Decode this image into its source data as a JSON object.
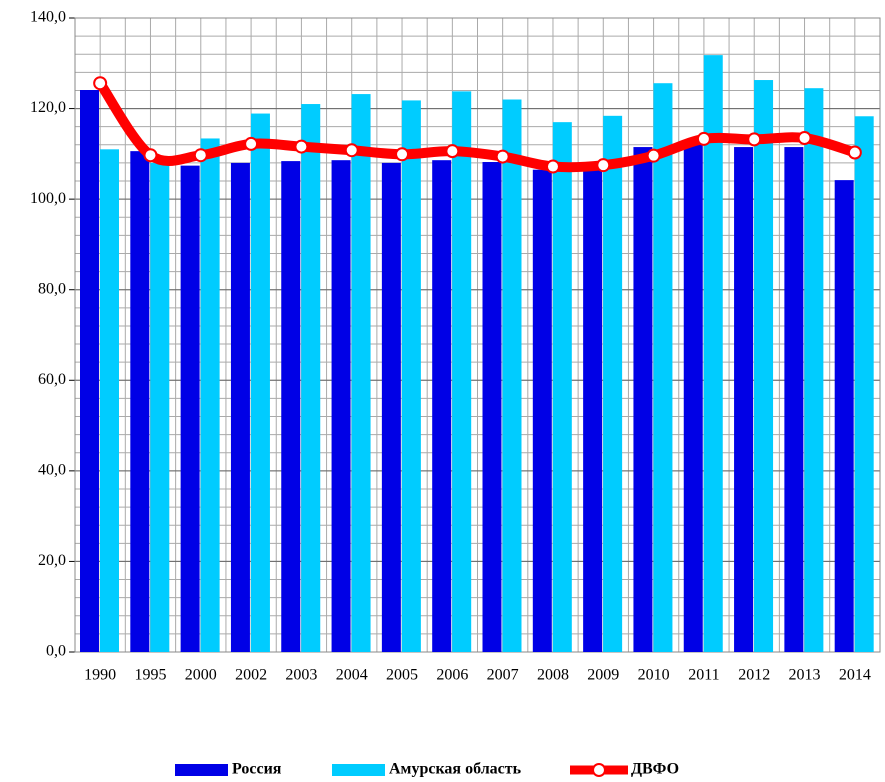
{
  "chart_data": {
    "type": "bar_line",
    "categories": [
      "1990",
      "1995",
      "2000",
      "2002",
      "2003",
      "2004",
      "2005",
      "2006",
      "2007",
      "2008",
      "2009",
      "2010",
      "2011",
      "2012",
      "2013",
      "2014"
    ],
    "series": [
      {
        "name": "Россия",
        "type": "bar",
        "color": "#0000e6",
        "values": [
          124.1,
          110.6,
          107.4,
          108.0,
          108.4,
          108.6,
          108.0,
          108.6,
          108.2,
          106.5,
          106.5,
          111.5,
          112.8,
          111.5,
          111.5,
          104.2
        ]
      },
      {
        "name": "Амурская область",
        "type": "bar",
        "color": "#00ccff",
        "values": [
          111.0,
          108.0,
          113.4,
          118.9,
          121.0,
          123.2,
          121.8,
          123.8,
          122.0,
          117.0,
          118.4,
          125.6,
          131.8,
          126.3,
          124.5,
          118.3
        ]
      },
      {
        "name": "ДВФО",
        "type": "line",
        "color": "#ff0000",
        "values": [
          125.6,
          109.7,
          109.7,
          112.2,
          111.6,
          110.8,
          109.9,
          110.6,
          109.4,
          107.2,
          107.5,
          109.6,
          113.3,
          113.2,
          113.5,
          110.3
        ]
      }
    ],
    "ylim": [
      0,
      140
    ],
    "yticks": [
      {
        "value": 0,
        "label": "0,0"
      },
      {
        "value": 20,
        "label": "20,0"
      },
      {
        "value": 40,
        "label": "40,0"
      },
      {
        "value": 60,
        "label": "60,0"
      },
      {
        "value": 80,
        "label": "80,0"
      },
      {
        "value": 100,
        "label": "100,0"
      },
      {
        "value": 120,
        "label": "120,0"
      },
      {
        "value": 140,
        "label": "140,0"
      }
    ],
    "grid": true,
    "legend": "bottom"
  }
}
